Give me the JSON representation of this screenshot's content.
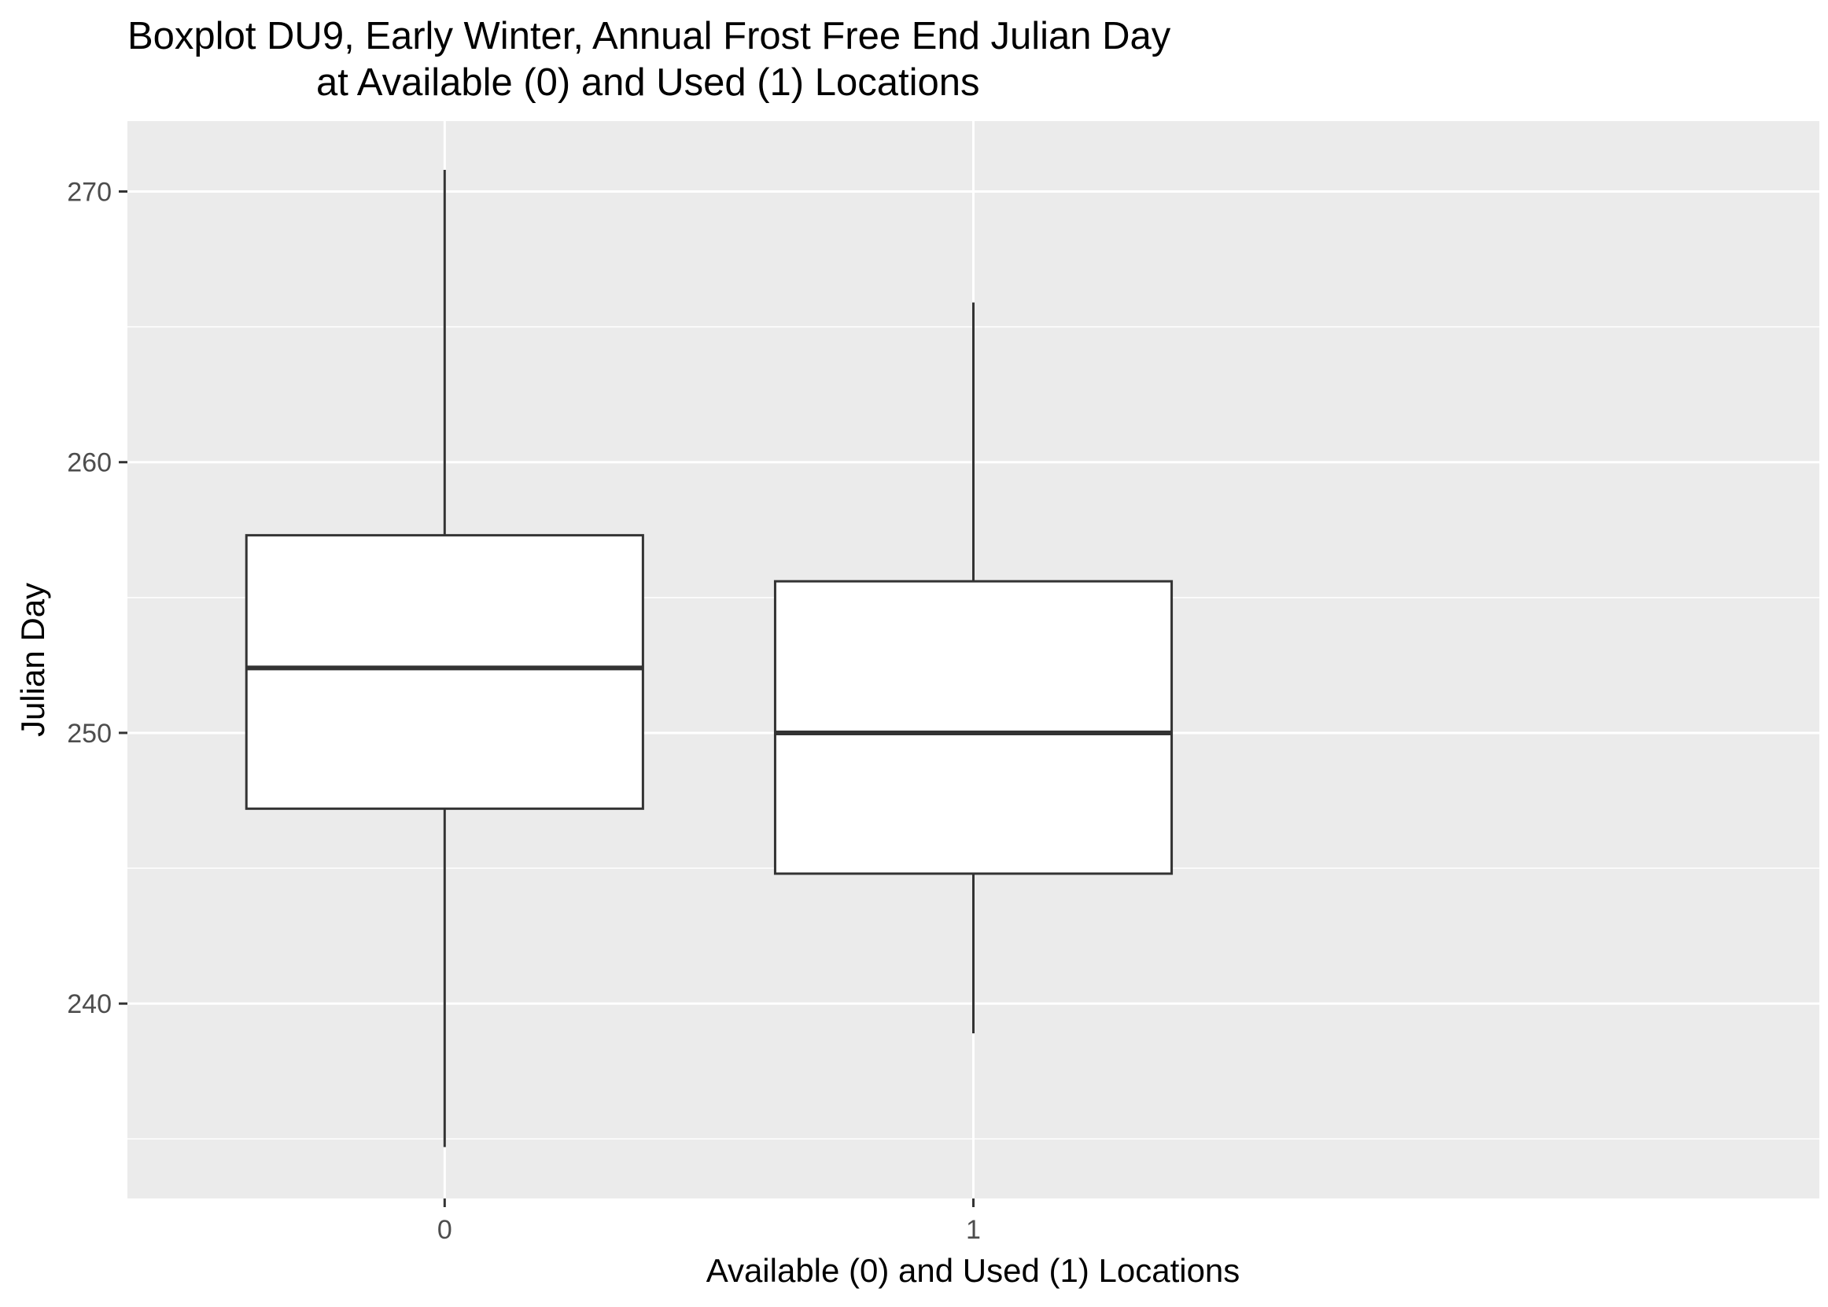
{
  "chart_data": {
    "type": "boxplot",
    "title": "Boxplot DU9, Early Winter, Annual Frost Free End Julian Day",
    "subtitle": "at Available (0) and Used (1) Locations",
    "xlabel": "Available (0) and Used (1) Locations",
    "ylabel": "Julian Day",
    "categories": [
      "0",
      "1"
    ],
    "ylim": [
      232.8,
      272.6
    ],
    "yticks": [
      240,
      250,
      260,
      270
    ],
    "grid": true,
    "legend": "none",
    "boxes": [
      {
        "category": "0",
        "min": 234.7,
        "q1": 247.2,
        "median": 252.4,
        "q3": 257.3,
        "max": 270.8
      },
      {
        "category": "1",
        "min": 238.9,
        "q1": 244.8,
        "median": 250.0,
        "q3": 255.6,
        "max": 265.9
      }
    ],
    "colors": {
      "panel": "#ebebeb",
      "grid": "#ffffff",
      "box_fill": "#ffffff",
      "box_stroke": "#333333"
    }
  }
}
